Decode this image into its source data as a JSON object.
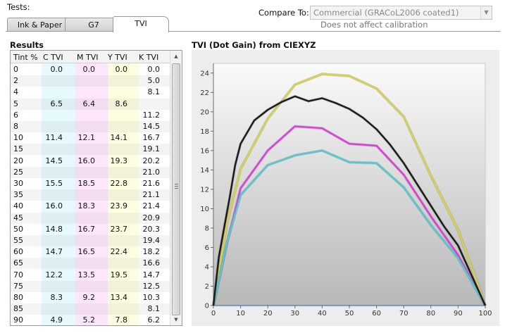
{
  "tests_label": "Tests:",
  "compare": {
    "label": "Compare To:",
    "selected": "Commercial (GRACoL2006 coated1)",
    "note": "Does not affect calibration"
  },
  "tabs": [
    {
      "label": "Ink & Paper",
      "active": false
    },
    {
      "label": "G7",
      "active": false
    },
    {
      "label": "TVI",
      "active": true
    }
  ],
  "results": {
    "title": "Results",
    "columns": [
      "Tint %",
      "C TVI",
      "M TVI",
      "Y TVI",
      "K TVI"
    ],
    "column_tints": {
      "C": "#e6f9fd",
      "M": "#fde6fc",
      "Y": "#fdfde2",
      "K": "#ffffff"
    },
    "rows": [
      [
        "0",
        "0.0",
        "0.0",
        "0.0",
        "0.0"
      ],
      [
        "2",
        "",
        "",
        "",
        "5.0"
      ],
      [
        "4",
        "",
        "",
        "",
        "8.1"
      ],
      [
        "5",
        "6.5",
        "6.4",
        "8.6",
        ""
      ],
      [
        "6",
        "",
        "",
        "",
        "11.2"
      ],
      [
        "8",
        "",
        "",
        "",
        "14.5"
      ],
      [
        "10",
        "11.4",
        "12.1",
        "14.1",
        "16.7"
      ],
      [
        "15",
        "",
        "",
        "",
        "19.1"
      ],
      [
        "20",
        "14.5",
        "16.0",
        "19.3",
        "20.2"
      ],
      [
        "25",
        "",
        "",
        "",
        "21.0"
      ],
      [
        "30",
        "15.5",
        "18.5",
        "22.8",
        "21.6"
      ],
      [
        "35",
        "",
        "",
        "",
        "21.1"
      ],
      [
        "40",
        "16.0",
        "18.3",
        "23.9",
        "21.4"
      ],
      [
        "45",
        "",
        "",
        "",
        "20.9"
      ],
      [
        "50",
        "14.8",
        "16.7",
        "23.7",
        "20.3"
      ],
      [
        "55",
        "",
        "",
        "",
        "19.4"
      ],
      [
        "60",
        "14.7",
        "16.5",
        "22.4",
        "18.2"
      ],
      [
        "65",
        "",
        "",
        "",
        "16.6"
      ],
      [
        "70",
        "12.2",
        "13.5",
        "19.5",
        "14.7"
      ],
      [
        "75",
        "",
        "",
        "",
        "12.5"
      ],
      [
        "80",
        "8.3",
        "9.2",
        "13.4",
        "10.3"
      ],
      [
        "85",
        "",
        "",
        "",
        "8.1"
      ],
      [
        "90",
        "4.9",
        "5.2",
        "7.8",
        "6.2"
      ]
    ]
  },
  "chart_data": {
    "type": "line",
    "title": "TVI (Dot Gain) from CIEXYZ",
    "xlim": [
      0,
      100
    ],
    "ylim": [
      0,
      25
    ],
    "xticks": [
      0,
      10,
      20,
      30,
      40,
      50,
      60,
      70,
      80,
      90,
      100
    ],
    "yticks": [
      0,
      2,
      4,
      6,
      8,
      10,
      12,
      14,
      16,
      18,
      20,
      22,
      24
    ],
    "grid": false,
    "series": [
      {
        "color": "#d6d24a",
        "points": [
          [
            0,
            0
          ],
          [
            5,
            8.6
          ],
          [
            10,
            14.1
          ],
          [
            20,
            19.3
          ],
          [
            30,
            22.8
          ],
          [
            40,
            23.9
          ],
          [
            50,
            23.7
          ],
          [
            60,
            22.4
          ],
          [
            70,
            19.5
          ],
          [
            80,
            13.4
          ],
          [
            90,
            7.8
          ],
          [
            100,
            0
          ]
        ]
      },
      {
        "color": "#dd3ddd",
        "points": [
          [
            0,
            0
          ],
          [
            5,
            6.4
          ],
          [
            10,
            12.1
          ],
          [
            20,
            16.0
          ],
          [
            30,
            18.5
          ],
          [
            40,
            18.3
          ],
          [
            50,
            16.7
          ],
          [
            60,
            16.5
          ],
          [
            70,
            13.5
          ],
          [
            80,
            9.2
          ],
          [
            90,
            5.2
          ],
          [
            100,
            0
          ]
        ]
      },
      {
        "color": "#52c8d2",
        "points": [
          [
            0,
            0
          ],
          [
            5,
            6.5
          ],
          [
            10,
            11.4
          ],
          [
            20,
            14.5
          ],
          [
            30,
            15.5
          ],
          [
            40,
            16.0
          ],
          [
            50,
            14.8
          ],
          [
            60,
            14.7
          ],
          [
            70,
            12.2
          ],
          [
            80,
            8.3
          ],
          [
            90,
            4.9
          ],
          [
            100,
            0
          ]
        ]
      },
      {
        "color": "#1a1a1a",
        "points": [
          [
            0,
            0
          ],
          [
            2,
            5.0
          ],
          [
            4,
            8.1
          ],
          [
            6,
            11.2
          ],
          [
            8,
            14.5
          ],
          [
            10,
            16.7
          ],
          [
            15,
            19.1
          ],
          [
            20,
            20.2
          ],
          [
            25,
            21.0
          ],
          [
            30,
            21.6
          ],
          [
            35,
            21.1
          ],
          [
            40,
            21.4
          ],
          [
            45,
            20.9
          ],
          [
            50,
            20.3
          ],
          [
            55,
            19.4
          ],
          [
            60,
            18.2
          ],
          [
            65,
            16.6
          ],
          [
            70,
            14.7
          ],
          [
            75,
            12.5
          ],
          [
            80,
            10.3
          ],
          [
            85,
            8.1
          ],
          [
            90,
            6.2
          ],
          [
            100,
            0
          ]
        ]
      }
    ]
  }
}
